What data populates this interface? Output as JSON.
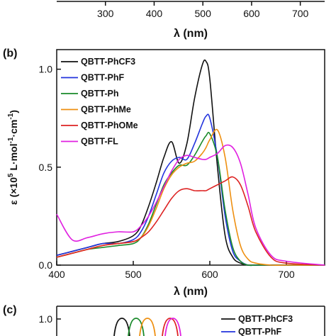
{
  "top_panel": {
    "xticks": [
      "300",
      "400",
      "500",
      "600",
      "700"
    ],
    "xlabel": "λ (nm)"
  },
  "panel_b": {
    "label": "(b)",
    "ylabel_prefix": "ε (×10",
    "ylabel_sup": "5",
    "ylabel_suffix": " L·mol",
    "ylabel_sup2": "-1",
    "ylabel_mid": "·cm",
    "ylabel_sup3": "-1",
    "ylabel_end": ")",
    "xlabel": "λ (nm)",
    "xticks": [
      "400",
      "500",
      "600",
      "700"
    ],
    "yticks": [
      "0.0",
      "0.5",
      "1.0"
    ]
  },
  "panel_c": {
    "label": "(c)",
    "yticks": [
      "1.0"
    ],
    "legend": [
      "QBTT-PhCF3",
      "QBTT-PhF"
    ]
  },
  "colors": {
    "QBTT-PhCF3": "#111111",
    "QBTT-PhF": "#2233dd",
    "QBTT-Ph": "#1a8a2a",
    "QBTT-PhMe": "#ee8f10",
    "QBTT-PhOMe": "#dd2222",
    "QBTT-FL": "#e020e0"
  },
  "chart_data": [
    {
      "type": "line",
      "panel": "b",
      "xlabel": "λ (nm)",
      "ylabel": "ε (×10^5 L·mol^-1·cm^-1)",
      "xlim": [
        400,
        750
      ],
      "ylim": [
        0,
        1.1
      ],
      "legend_position": "top-left",
      "x": [
        400,
        420,
        440,
        460,
        480,
        500,
        510,
        520,
        530,
        540,
        550,
        560,
        570,
        580,
        590,
        595,
        600,
        610,
        620,
        630,
        640,
        650,
        660,
        680,
        700,
        750
      ],
      "series": [
        {
          "name": "QBTT-PhCF3",
          "values": [
            0.05,
            0.07,
            0.09,
            0.11,
            0.12,
            0.15,
            0.2,
            0.3,
            0.42,
            0.55,
            0.63,
            0.52,
            0.62,
            0.85,
            1.02,
            1.04,
            0.95,
            0.5,
            0.15,
            0.04,
            0.01,
            0.0,
            0.0,
            0.0,
            0.0,
            0.0
          ]
        },
        {
          "name": "QBTT-PhF",
          "values": [
            0.05,
            0.07,
            0.09,
            0.11,
            0.11,
            0.13,
            0.17,
            0.25,
            0.36,
            0.47,
            0.53,
            0.55,
            0.54,
            0.62,
            0.72,
            0.76,
            0.75,
            0.55,
            0.25,
            0.07,
            0.02,
            0.0,
            0.0,
            0.0,
            0.0,
            0.0
          ]
        },
        {
          "name": "QBTT-Ph",
          "values": [
            0.04,
            0.06,
            0.08,
            0.09,
            0.1,
            0.11,
            0.14,
            0.21,
            0.31,
            0.41,
            0.47,
            0.51,
            0.51,
            0.56,
            0.63,
            0.66,
            0.67,
            0.55,
            0.28,
            0.09,
            0.02,
            0.0,
            0.0,
            0.0,
            0.0,
            0.0
          ]
        },
        {
          "name": "QBTT-PhMe",
          "values": [
            0.04,
            0.06,
            0.08,
            0.1,
            0.11,
            0.12,
            0.14,
            0.2,
            0.29,
            0.39,
            0.46,
            0.5,
            0.52,
            0.53,
            0.57,
            0.6,
            0.64,
            0.69,
            0.55,
            0.28,
            0.1,
            0.03,
            0.01,
            0.0,
            0.0,
            0.0
          ]
        },
        {
          "name": "QBTT-PhOMe",
          "values": [
            0.04,
            0.06,
            0.08,
            0.1,
            0.11,
            0.12,
            0.14,
            0.17,
            0.22,
            0.28,
            0.34,
            0.38,
            0.39,
            0.38,
            0.38,
            0.38,
            0.39,
            0.41,
            0.43,
            0.45,
            0.41,
            0.3,
            0.17,
            0.04,
            0.01,
            0.0
          ]
        },
        {
          "name": "QBTT-FL",
          "values": [
            0.26,
            0.13,
            0.14,
            0.16,
            0.17,
            0.17,
            0.2,
            0.25,
            0.32,
            0.4,
            0.48,
            0.54,
            0.56,
            0.55,
            0.54,
            0.54,
            0.55,
            0.57,
            0.61,
            0.6,
            0.52,
            0.36,
            0.19,
            0.05,
            0.02,
            0.0
          ]
        }
      ]
    },
    {
      "type": "line",
      "panel": "c",
      "note_visible": "partially cropped panel",
      "yticks": [
        "1.0"
      ]
    }
  ]
}
